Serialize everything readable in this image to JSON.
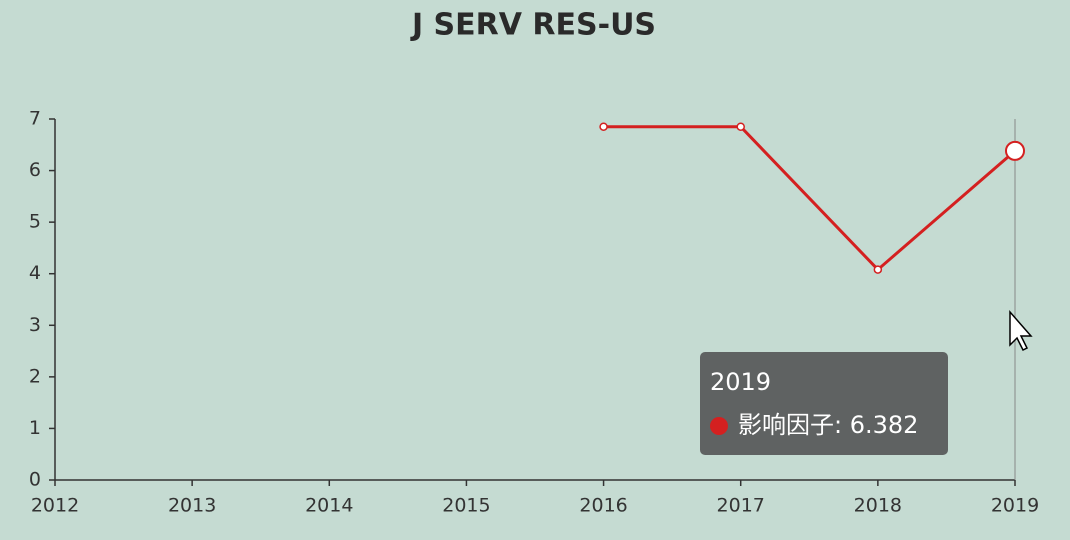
{
  "chart_data": {
    "type": "line",
    "title": "J SERV RES-US",
    "categories": [
      "2012",
      "2013",
      "2014",
      "2015",
      "2016",
      "2017",
      "2018",
      "2019"
    ],
    "values": [
      null,
      null,
      null,
      null,
      6.85,
      6.85,
      4.08,
      6.382
    ],
    "color": "#d42020",
    "ylim": [
      0,
      7
    ],
    "yticks": [
      0,
      1,
      2,
      3,
      4,
      5,
      6,
      7
    ],
    "tooltip": {
      "title": "2019",
      "text": "影响因子: 6.382"
    }
  }
}
